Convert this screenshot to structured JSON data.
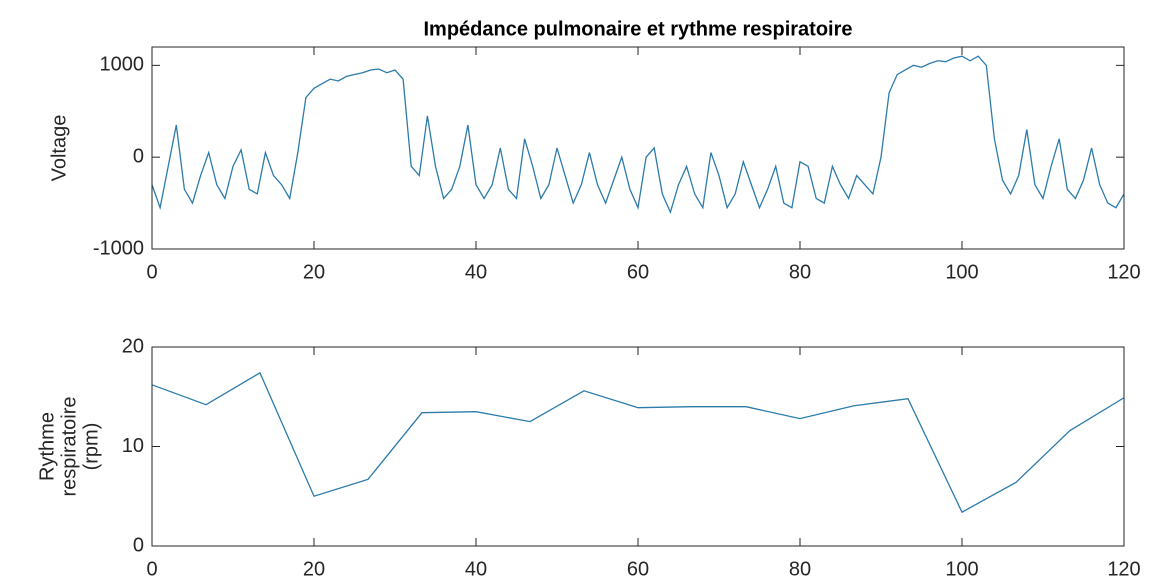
{
  "chart_data": [
    {
      "type": "line",
      "title": "Impédance pulmonaire et rythme respiratoire",
      "ylabel": [
        "Voltage"
      ],
      "x": [
        0,
        1,
        2,
        3,
        4,
        5,
        6,
        7,
        8,
        9,
        10,
        11,
        12,
        13,
        14,
        15,
        16,
        17,
        18,
        19,
        20,
        21,
        22,
        23,
        24,
        25,
        26,
        27,
        28,
        29,
        30,
        31,
        32,
        33,
        34,
        35,
        36,
        37,
        38,
        39,
        40,
        41,
        42,
        43,
        44,
        45,
        46,
        47,
        48,
        49,
        50,
        51,
        52,
        53,
        54,
        55,
        56,
        57,
        58,
        59,
        60,
        61,
        62,
        63,
        64,
        65,
        66,
        67,
        68,
        69,
        70,
        71,
        72,
        73,
        74,
        75,
        76,
        77,
        78,
        79,
        80,
        81,
        82,
        83,
        84,
        85,
        86,
        87,
        88,
        89,
        90,
        91,
        92,
        93,
        94,
        95,
        96,
        97,
        98,
        99,
        100,
        101,
        102,
        103,
        104,
        105,
        106,
        107,
        108,
        109,
        110,
        111,
        112,
        113,
        114,
        115,
        116,
        117,
        118,
        119,
        120
      ],
      "values": [
        -300,
        -550,
        -100,
        350,
        -350,
        -500,
        -200,
        50,
        -300,
        -450,
        -100,
        80,
        -350,
        -400,
        50,
        -200,
        -300,
        -450,
        50,
        650,
        750,
        800,
        850,
        830,
        880,
        900,
        920,
        950,
        960,
        920,
        950,
        850,
        -100,
        -200,
        450,
        -100,
        -450,
        -350,
        -100,
        350,
        -300,
        -450,
        -300,
        100,
        -350,
        -450,
        200,
        -100,
        -450,
        -300,
        100,
        -200,
        -500,
        -300,
        50,
        -300,
        -500,
        -250,
        0,
        -350,
        -550,
        0,
        100,
        -400,
        -600,
        -300,
        -100,
        -400,
        -550,
        50,
        -200,
        -550,
        -400,
        -50,
        -300,
        -550,
        -350,
        -100,
        -500,
        -550,
        -50,
        -100,
        -450,
        -500,
        -100,
        -300,
        -450,
        -200,
        -300,
        -400,
        0,
        700,
        900,
        950,
        1000,
        980,
        1020,
        1050,
        1040,
        1080,
        1100,
        1050,
        1100,
        1000,
        200,
        -250,
        -400,
        -200,
        300,
        -300,
        -450,
        -100,
        200,
        -350,
        -450,
        -250,
        100,
        -300,
        -500,
        -550,
        -400
      ],
      "color": "#2b7bab",
      "xlim": [
        0,
        120
      ],
      "xticks": [
        0,
        20,
        40,
        60,
        80,
        100,
        120
      ],
      "ylim": [
        -1000,
        1200
      ],
      "yticks": [
        -1000,
        0,
        1000
      ]
    },
    {
      "type": "line",
      "ylabel": [
        "Rythme",
        "respiratoire",
        "(rpm)"
      ],
      "x": [
        0,
        6.67,
        13.33,
        20,
        26.67,
        33.33,
        40,
        46.67,
        53.33,
        60,
        66.67,
        73.33,
        80,
        86.67,
        93.33,
        100,
        106.67,
        113.33,
        120
      ],
      "values": [
        16.2,
        14.2,
        17.4,
        5,
        6.7,
        13.4,
        13.5,
        12.5,
        15.6,
        13.9,
        14,
        14,
        12.8,
        14.1,
        14.8,
        3.4,
        6.4,
        11.6,
        14.9
      ],
      "color": "#2b7bab",
      "xlim": [
        0,
        120
      ],
      "xticks": [
        0,
        20,
        40,
        60,
        80,
        100,
        120
      ],
      "ylim": [
        0,
        20
      ],
      "yticks": [
        0,
        10,
        20
      ]
    }
  ]
}
